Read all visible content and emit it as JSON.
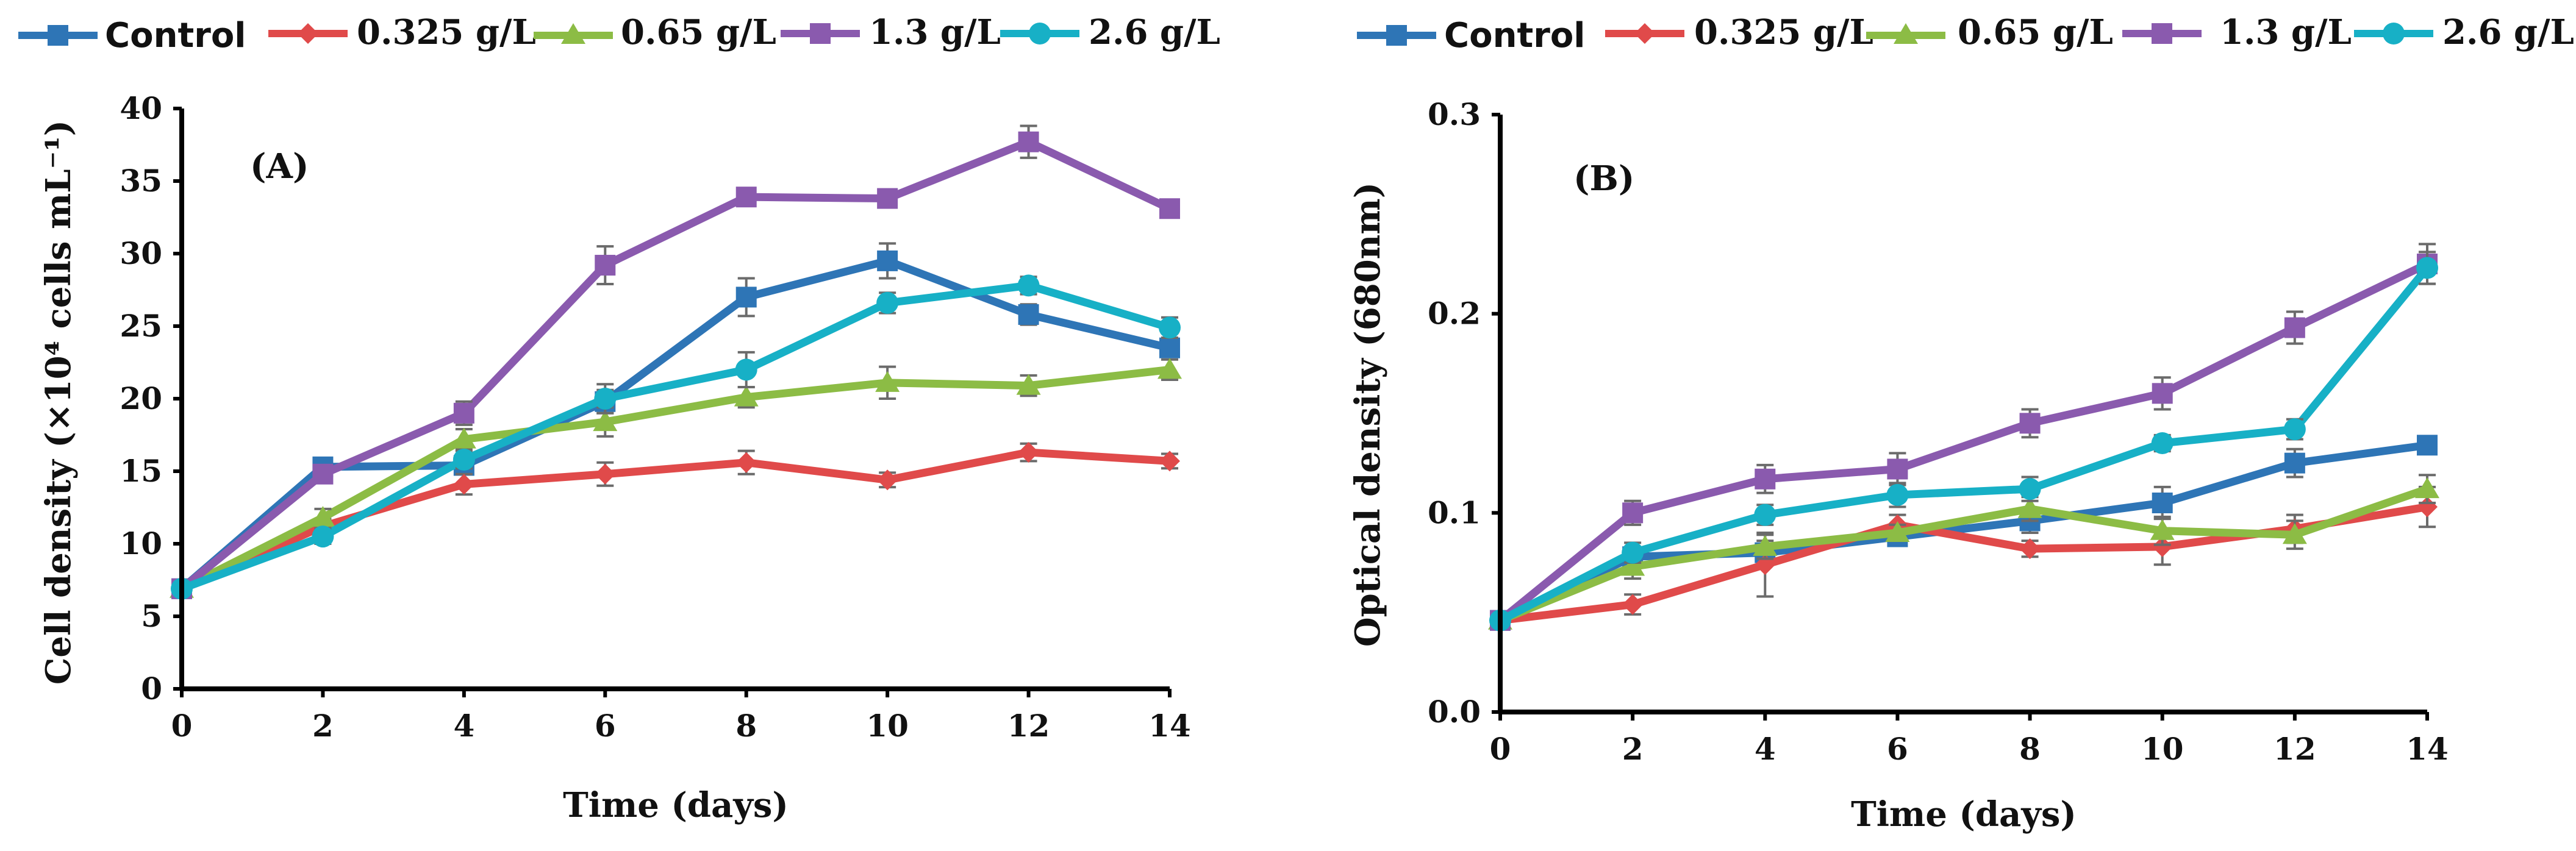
{
  "colors": {
    "Control": "#2e75b6",
    "0.325 g/L": "#e04a4a",
    "0.65 g/L": "#8cbc45",
    "1.3 g/L": "#8a5aae",
    "2.6 g/L": "#17b0c6"
  },
  "chart_data": [
    {
      "type": "line",
      "panel": "(A)",
      "title": "",
      "xlabel": "Time (days)",
      "ylabel": "Cell density (×10⁴ cells mL⁻¹)",
      "xlim": [
        0,
        14
      ],
      "ylim": [
        0,
        40
      ],
      "xticks": [
        "0",
        "2",
        "4",
        "6",
        "8",
        "10",
        "12",
        "14"
      ],
      "yticks": [
        "0",
        "5",
        "10",
        "15",
        "20",
        "25",
        "30",
        "35",
        "40"
      ],
      "legend": [
        "Control",
        "0.325 g/L",
        "0.65 g/L",
        "1.3 g/L",
        "2.6 g/L"
      ],
      "legend_position": "top",
      "x": [
        0,
        2,
        4,
        6,
        8,
        10,
        12,
        14
      ],
      "series": [
        {
          "name": "Control",
          "marker": "square",
          "values": [
            6.9,
            15.3,
            15.4,
            19.8,
            27.0,
            29.5,
            25.8,
            23.5
          ],
          "errors": [
            0.3,
            0.5,
            0.6,
            0.8,
            1.3,
            1.2,
            0.7,
            0.6
          ]
        },
        {
          "name": "0.325 g/L",
          "marker": "diamond",
          "values": [
            6.9,
            11.2,
            14.1,
            14.8,
            15.6,
            14.4,
            16.3,
            15.7
          ],
          "errors": [
            0.3,
            0.5,
            0.7,
            0.8,
            0.8,
            0.5,
            0.6,
            0.5
          ]
        },
        {
          "name": "0.65 g/L",
          "marker": "triangle",
          "values": [
            6.9,
            11.8,
            17.2,
            18.4,
            20.1,
            21.1,
            20.9,
            22.0
          ],
          "errors": [
            0.3,
            0.6,
            0.7,
            1.0,
            0.7,
            1.1,
            0.7,
            0.7
          ]
        },
        {
          "name": "1.3 g/L",
          "marker": "square",
          "values": [
            6.9,
            14.8,
            19.0,
            29.2,
            33.9,
            33.8,
            37.7,
            33.1
          ],
          "errors": [
            0.3,
            0.6,
            0.8,
            1.3,
            0.6,
            0.6,
            1.1,
            0.6
          ]
        },
        {
          "name": "2.6 g/L",
          "marker": "circle",
          "values": [
            6.9,
            10.5,
            15.8,
            20.0,
            22.0,
            26.6,
            27.8,
            24.9
          ],
          "errors": [
            0.3,
            0.5,
            0.6,
            1.0,
            1.2,
            0.7,
            0.6,
            0.7
          ]
        }
      ]
    },
    {
      "type": "line",
      "panel": "(B)",
      "title": "",
      "xlabel": "Time (days)",
      "ylabel": "Optical density (680nm)",
      "xlim": [
        0,
        14
      ],
      "ylim": [
        0,
        0.3
      ],
      "xticks": [
        "0",
        "2",
        "4",
        "6",
        "8",
        "10",
        "12",
        "14"
      ],
      "yticks": [
        "0.0",
        "0.1",
        "0.2",
        "0.3"
      ],
      "legend": [
        "Control",
        "0.325 g/L",
        "0.65 g/L",
        "1.3 g/L",
        "2.6 g/L"
      ],
      "legend_position": "top",
      "x": [
        0,
        2,
        4,
        6,
        8,
        10,
        12,
        14
      ],
      "series": [
        {
          "name": "Control",
          "marker": "square",
          "values": [
            0.046,
            0.078,
            0.08,
            0.088,
            0.096,
            0.105,
            0.125,
            0.134
          ],
          "errors": [
            0.002,
            0.004,
            0.006,
            0.004,
            0.006,
            0.008,
            0.007,
            0.003
          ]
        },
        {
          "name": "0.325 g/L",
          "marker": "diamond",
          "values": [
            0.046,
            0.054,
            0.074,
            0.094,
            0.082,
            0.083,
            0.092,
            0.103
          ],
          "errors": [
            0.002,
            0.005,
            0.016,
            0.005,
            0.004,
            0.009,
            0.007,
            0.01
          ]
        },
        {
          "name": "0.65 g/L",
          "marker": "triangle",
          "values": [
            0.046,
            0.073,
            0.083,
            0.09,
            0.102,
            0.091,
            0.089,
            0.112
          ],
          "errors": [
            0.002,
            0.006,
            0.006,
            0.004,
            0.006,
            0.007,
            0.007,
            0.007
          ]
        },
        {
          "name": "1.3 g/L",
          "marker": "square",
          "values": [
            0.046,
            0.1,
            0.117,
            0.122,
            0.145,
            0.16,
            0.193,
            0.225
          ],
          "errors": [
            0.002,
            0.006,
            0.007,
            0.008,
            0.007,
            0.008,
            0.008,
            0.01
          ]
        },
        {
          "name": "2.6 g/L",
          "marker": "circle",
          "values": [
            0.046,
            0.08,
            0.099,
            0.109,
            0.112,
            0.135,
            0.142,
            0.223
          ],
          "errors": [
            0.002,
            0.005,
            0.005,
            0.006,
            0.006,
            0.004,
            0.005,
            0.008
          ]
        }
      ]
    }
  ]
}
